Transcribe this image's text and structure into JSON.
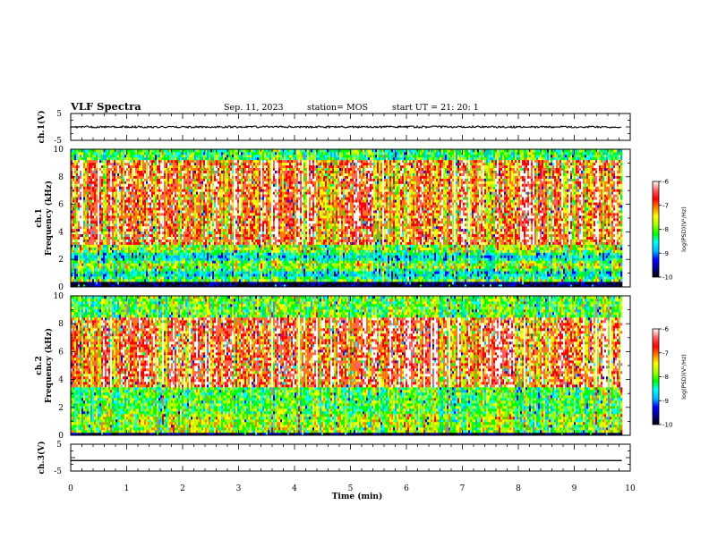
{
  "header": {
    "title": "VLF Spectra",
    "date": "Sep. 11, 2023",
    "station": "station= MOS",
    "start": "start  UT =   21: 20: 1"
  },
  "colors": {
    "scale": [
      "#000000",
      "#00008b",
      "#0000ff",
      "#00b7ff",
      "#00ffff",
      "#00ff00",
      "#a0ff00",
      "#ffff00",
      "#ff8000",
      "#ff0000",
      "#ff6060",
      "#ffffff"
    ],
    "trace": "#000000"
  },
  "chart_data": [
    {
      "type": "line",
      "name": "ch1-voltage",
      "ylabel": "ch.1(V)",
      "ylim": [
        -5,
        5
      ],
      "yticks": [
        "5",
        "-5"
      ],
      "xlim": [
        0,
        10
      ],
      "y_level": 0,
      "x_end": 9.85
    },
    {
      "type": "heatmap",
      "name": "ch1-spectrogram",
      "ylabel_line1": "ch.1",
      "ylabel_line2": "Frequency (kHz)",
      "ylim": [
        0,
        10
      ],
      "yticks": [
        "0",
        "2",
        "4",
        "6",
        "8",
        "10"
      ],
      "xlim": [
        0,
        10
      ],
      "x_end": 9.85,
      "colorbar": {
        "range": [
          -10,
          -6
        ],
        "ticks": [
          "-6",
          "-7",
          "-8",
          "-9",
          "-10"
        ],
        "label": "log(PSD)(V²/Hz)"
      }
    },
    {
      "type": "heatmap",
      "name": "ch2-spectrogram",
      "ylabel_line1": "ch.2",
      "ylabel_line2": "Frequency (kHz)",
      "ylim": [
        0,
        10
      ],
      "yticks": [
        "0",
        "2",
        "4",
        "6",
        "8",
        "10"
      ],
      "xlim": [
        0,
        10
      ],
      "x_end": 9.85,
      "colorbar": {
        "range": [
          -10,
          -6
        ],
        "ticks": [
          "-6",
          "-7",
          "-8",
          "-9",
          "-10"
        ],
        "label": "log(PSD)(V²/Hz)"
      }
    },
    {
      "type": "line",
      "name": "ch3-voltage",
      "ylabel": "ch.3(V)",
      "ylim": [
        -5,
        5
      ],
      "yticks": [
        "5",
        "-5"
      ],
      "xlim": [
        0,
        10
      ],
      "y_level": -1.1,
      "x_end": 9.85
    }
  ],
  "xaxis": {
    "label": "Time  (min)",
    "ticks": [
      "0",
      "1",
      "2",
      "3",
      "4",
      "5",
      "6",
      "7",
      "8",
      "9",
      "10"
    ]
  }
}
